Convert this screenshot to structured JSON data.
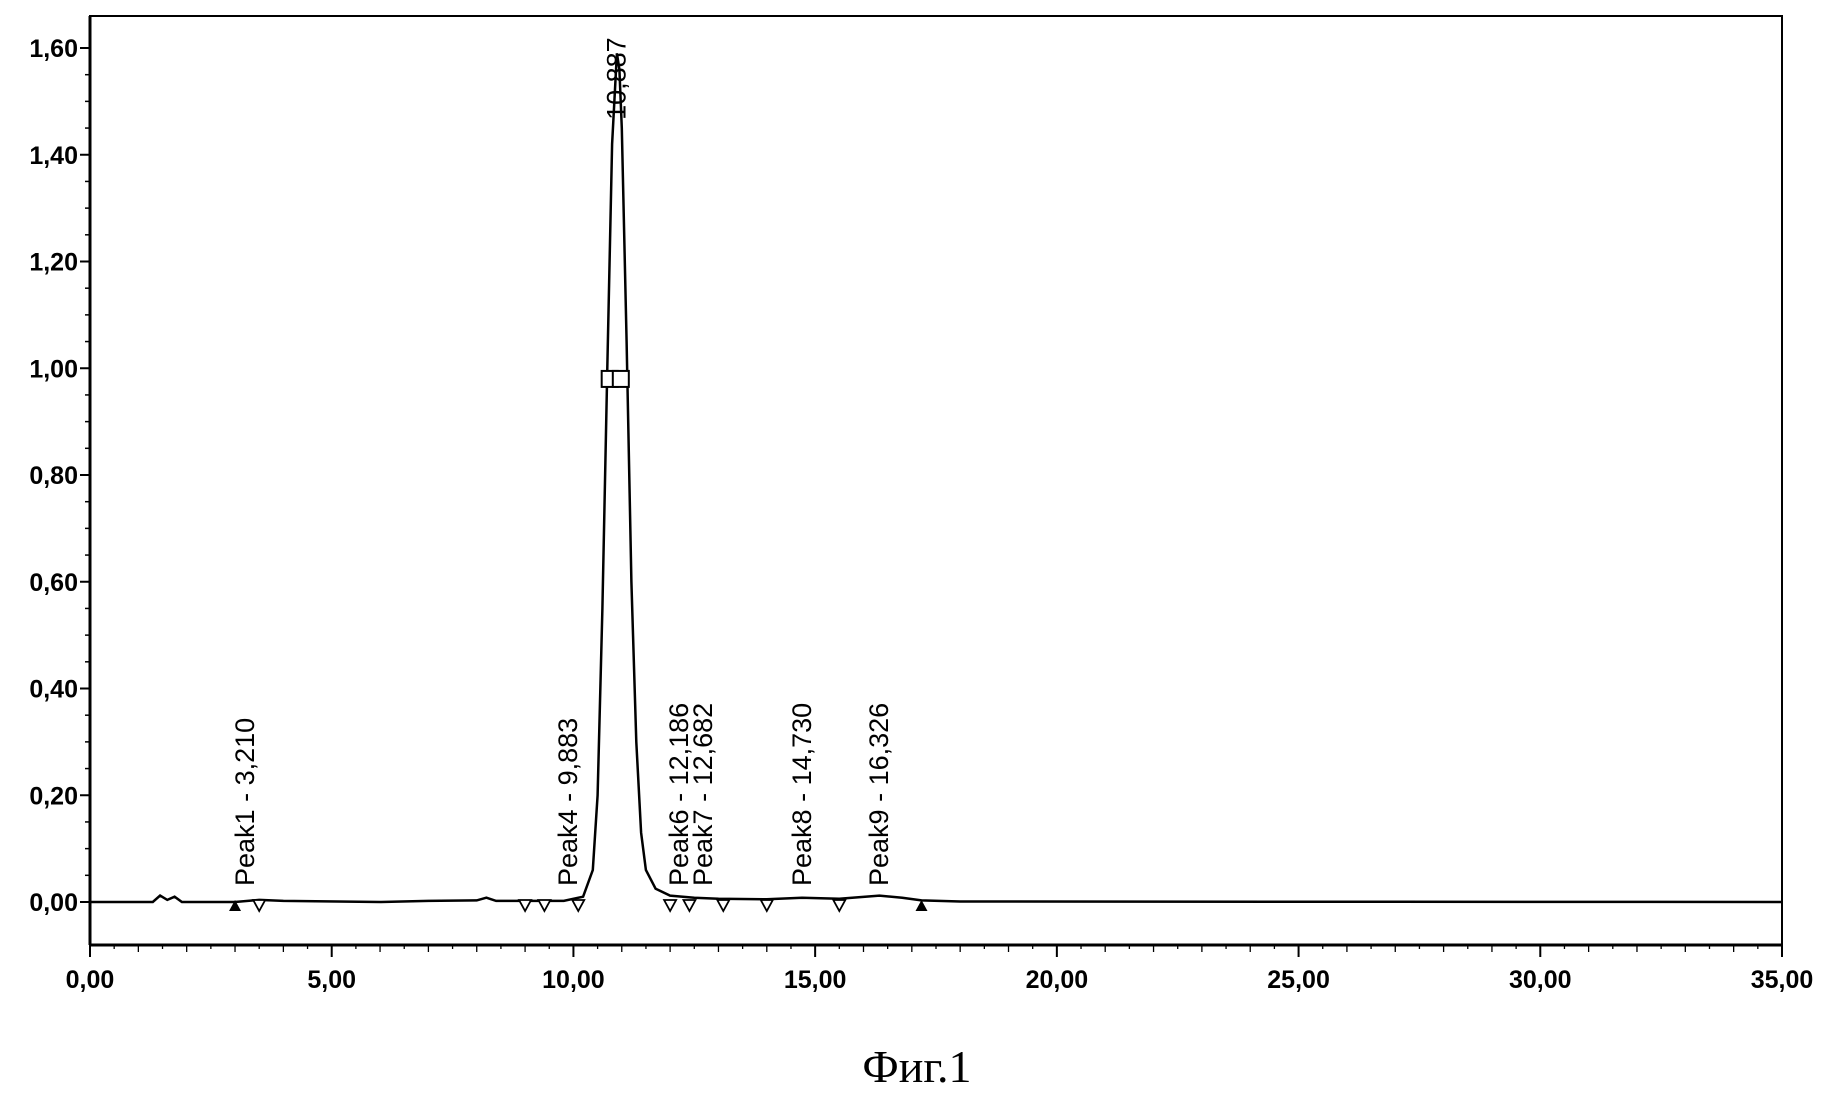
{
  "chart_data": {
    "type": "line",
    "title": "",
    "xlabel": "",
    "ylabel": "",
    "xlim": [
      0,
      35
    ],
    "ylim": [
      -0.07,
      1.65
    ],
    "x_ticks": [
      "0,00",
      "5,00",
      "10,00",
      "15,00",
      "20,00",
      "25,00",
      "30,00",
      "35,00"
    ],
    "y_ticks": [
      "0,00",
      "0,20",
      "0,40",
      "0,60",
      "0,80",
      "1,00",
      "1,20",
      "1,40",
      "1,60"
    ],
    "grid": false,
    "line_color": "#000000",
    "series": [
      {
        "values": [
          [
            0.0,
            0.0
          ],
          [
            1.3,
            0.0
          ],
          [
            1.45,
            0.012
          ],
          [
            1.6,
            0.004
          ],
          [
            1.75,
            0.01
          ],
          [
            1.9,
            0.0
          ],
          [
            3.0,
            0.0
          ],
          [
            3.5,
            0.004
          ],
          [
            4.0,
            0.002
          ],
          [
            6.0,
            0.0
          ],
          [
            7.0,
            0.002
          ],
          [
            8.0,
            0.003
          ],
          [
            8.2,
            0.008
          ],
          [
            8.4,
            0.002
          ],
          [
            9.8,
            0.002
          ],
          [
            10.2,
            0.01
          ],
          [
            10.4,
            0.06
          ],
          [
            10.5,
            0.2
          ],
          [
            10.6,
            0.55
          ],
          [
            10.7,
            1.0
          ],
          [
            10.8,
            1.42
          ],
          [
            10.9,
            1.59
          ],
          [
            10.95,
            1.56
          ],
          [
            11.0,
            1.45
          ],
          [
            11.1,
            1.05
          ],
          [
            11.2,
            0.6
          ],
          [
            11.3,
            0.3
          ],
          [
            11.4,
            0.13
          ],
          [
            11.5,
            0.06
          ],
          [
            11.7,
            0.025
          ],
          [
            12.0,
            0.012
          ],
          [
            12.5,
            0.008
          ],
          [
            13.0,
            0.006
          ],
          [
            14.0,
            0.005
          ],
          [
            14.73,
            0.008
          ],
          [
            15.5,
            0.006
          ],
          [
            16.33,
            0.012
          ],
          [
            16.8,
            0.008
          ],
          [
            17.2,
            0.003
          ],
          [
            18.0,
            0.001
          ],
          [
            35.0,
            0.0
          ]
        ]
      }
    ],
    "annotations": [
      {
        "text": "Peak1 - 3,210",
        "x": 3.21
      },
      {
        "text": "Peak4 - 9,883",
        "x": 9.883
      },
      {
        "text": "Peak6 - 12,186",
        "x": 12.186
      },
      {
        "text": "Peak7 - 12,682",
        "x": 12.682
      },
      {
        "text": "Peak8 - 14,730",
        "x": 14.73
      },
      {
        "text": "Peak9 - 16,326",
        "x": 16.326
      },
      {
        "text": "10,887",
        "x": 10.887
      }
    ],
    "markers": {
      "up_triangles": [
        3.0,
        17.2
      ],
      "down_triangles": [
        3.5,
        9.0,
        9.4,
        10.1,
        12.0,
        12.4,
        13.1,
        14.0,
        15.5
      ],
      "squares": [
        10.75,
        10.98
      ]
    }
  },
  "caption": "Фиг.1"
}
